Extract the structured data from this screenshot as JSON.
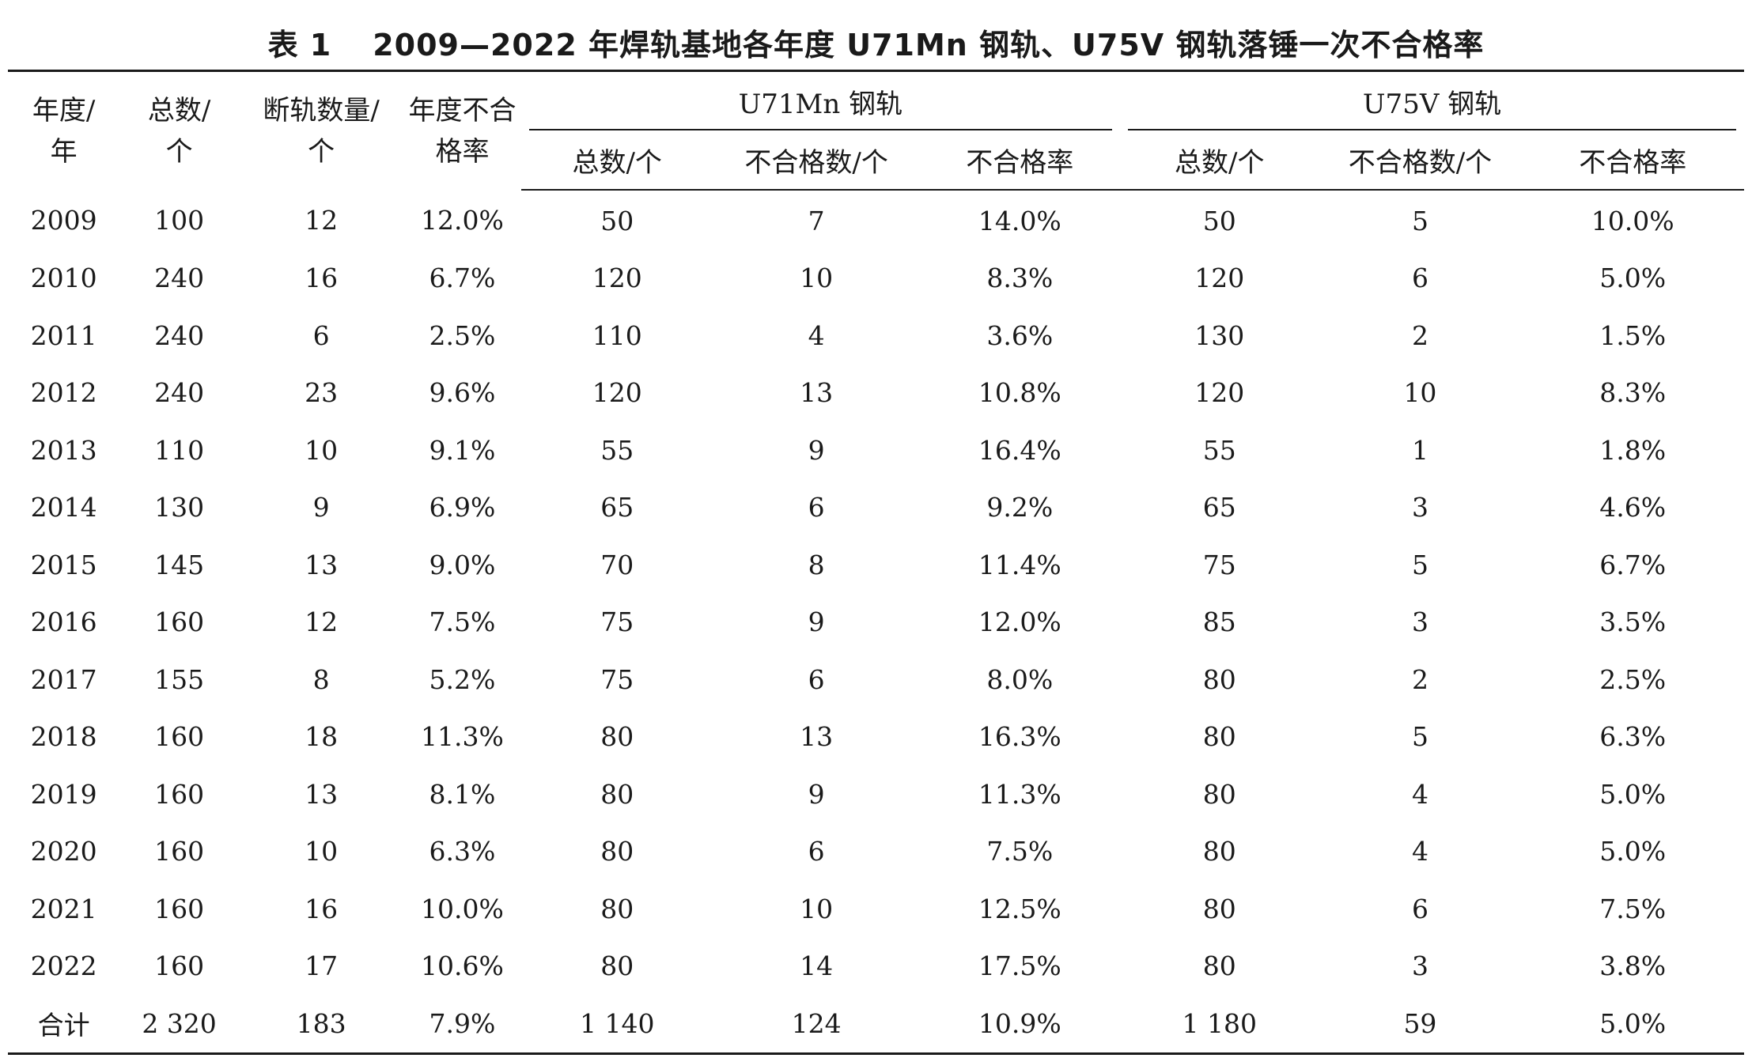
{
  "title": {
    "label": "表 1",
    "text": "2009—2022 年焊轨基地各年度 U71Mn 钢轨、U75V 钢轨落锤一次不合格率"
  },
  "header": {
    "year": "年度/年",
    "year_l1": "年度/",
    "year_l2": "年",
    "total_l1": "总数/",
    "total_l2": "个",
    "broken_l1": "断轨数量/",
    "broken_l2": "个",
    "rate_l1": "年度不合",
    "rate_l2": "格率",
    "group_u71mn": "U71Mn 钢轨",
    "group_u75v": "U75V 钢轨",
    "sub": [
      "总数/个",
      "不合格数/个",
      "不合格率",
      "总数/个",
      "不合格数/个",
      "不合格率"
    ]
  },
  "rows": [
    [
      "2009",
      "100",
      "12",
      "12.0%",
      "50",
      "7",
      "14.0%",
      "50",
      "5",
      "10.0%"
    ],
    [
      "2010",
      "240",
      "16",
      "6.7%",
      "120",
      "10",
      "8.3%",
      "120",
      "6",
      "5.0%"
    ],
    [
      "2011",
      "240",
      "6",
      "2.5%",
      "110",
      "4",
      "3.6%",
      "130",
      "2",
      "1.5%"
    ],
    [
      "2012",
      "240",
      "23",
      "9.6%",
      "120",
      "13",
      "10.8%",
      "120",
      "10",
      "8.3%"
    ],
    [
      "2013",
      "110",
      "10",
      "9.1%",
      "55",
      "9",
      "16.4%",
      "55",
      "1",
      "1.8%"
    ],
    [
      "2014",
      "130",
      "9",
      "6.9%",
      "65",
      "6",
      "9.2%",
      "65",
      "3",
      "4.6%"
    ],
    [
      "2015",
      "145",
      "13",
      "9.0%",
      "70",
      "8",
      "11.4%",
      "75",
      "5",
      "6.7%"
    ],
    [
      "2016",
      "160",
      "12",
      "7.5%",
      "75",
      "9",
      "12.0%",
      "85",
      "3",
      "3.5%"
    ],
    [
      "2017",
      "155",
      "8",
      "5.2%",
      "75",
      "6",
      "8.0%",
      "80",
      "2",
      "2.5%"
    ],
    [
      "2018",
      "160",
      "18",
      "11.3%",
      "80",
      "13",
      "16.3%",
      "80",
      "5",
      "6.3%"
    ],
    [
      "2019",
      "160",
      "13",
      "8.1%",
      "80",
      "9",
      "11.3%",
      "80",
      "4",
      "5.0%"
    ],
    [
      "2020",
      "160",
      "10",
      "6.3%",
      "80",
      "6",
      "7.5%",
      "80",
      "4",
      "5.0%"
    ],
    [
      "2021",
      "160",
      "16",
      "10.0%",
      "80",
      "10",
      "12.5%",
      "80",
      "6",
      "7.5%"
    ],
    [
      "2022",
      "160",
      "17",
      "10.6%",
      "80",
      "14",
      "17.5%",
      "80",
      "3",
      "3.8%"
    ]
  ],
  "total": [
    "合计",
    "2 320",
    "183",
    "7.9%",
    "1 140",
    "124",
    "10.9%",
    "1 180",
    "59",
    "5.0%"
  ]
}
